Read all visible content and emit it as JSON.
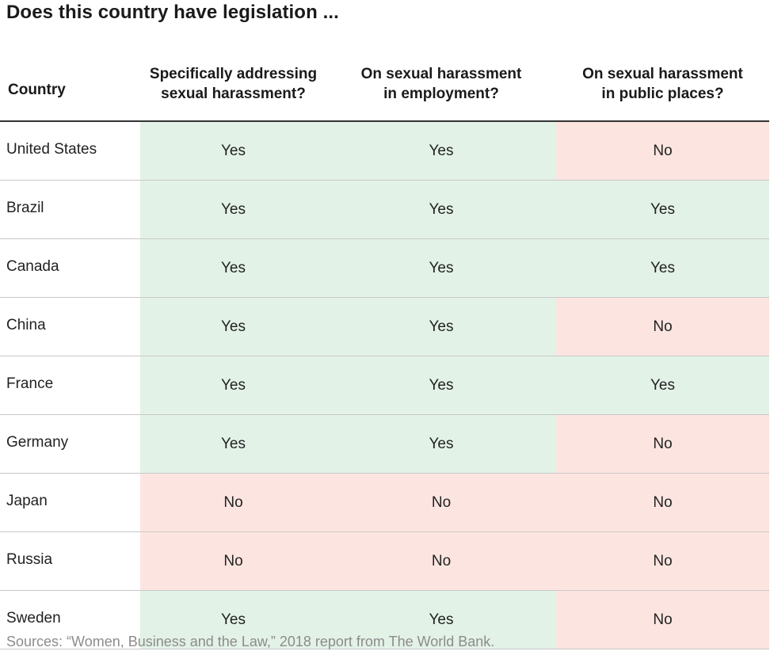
{
  "title": "Does this country have legislation ...",
  "colors": {
    "yes_bg": "#e3f2e7",
    "no_bg": "#fce5e0"
  },
  "table": {
    "columns": [
      "Country",
      "Specifically addressing sexual harassment?",
      "On sexual harassment in employment?",
      "On sexual harassment in public places?"
    ],
    "column_lines": [
      [
        "Country"
      ],
      [
        "Specifically addressing",
        "sexual harassment?"
      ],
      [
        "On sexual harassment",
        "in employment?"
      ],
      [
        "On sexual harassment",
        "in public places?"
      ]
    ],
    "rows": [
      [
        "United States",
        "Yes",
        "Yes",
        "No"
      ],
      [
        "Brazil",
        "Yes",
        "Yes",
        "Yes"
      ],
      [
        "Canada",
        "Yes",
        "Yes",
        "Yes"
      ],
      [
        "China",
        "Yes",
        "Yes",
        "No"
      ],
      [
        "France",
        "Yes",
        "Yes",
        "Yes"
      ],
      [
        "Germany",
        "Yes",
        "Yes",
        "No"
      ],
      [
        "Japan",
        "No",
        "No",
        "No"
      ],
      [
        "Russia",
        "No",
        "No",
        "No"
      ],
      [
        "Sweden",
        "Yes",
        "Yes",
        "No"
      ]
    ]
  },
  "chart_data": {
    "type": "table",
    "title": "Does this country have legislation ...",
    "columns": [
      "Country",
      "Specifically addressing sexual harassment?",
      "On sexual harassment in employment?",
      "On sexual harassment in public places?"
    ],
    "rows": [
      [
        "United States",
        "Yes",
        "Yes",
        "No"
      ],
      [
        "Brazil",
        "Yes",
        "Yes",
        "Yes"
      ],
      [
        "Canada",
        "Yes",
        "Yes",
        "Yes"
      ],
      [
        "China",
        "Yes",
        "Yes",
        "No"
      ],
      [
        "France",
        "Yes",
        "Yes",
        "Yes"
      ],
      [
        "Germany",
        "Yes",
        "Yes",
        "No"
      ],
      [
        "Japan",
        "No",
        "No",
        "No"
      ],
      [
        "Russia",
        "No",
        "No",
        "No"
      ],
      [
        "Sweden",
        "Yes",
        "Yes",
        "No"
      ]
    ]
  },
  "source": "Sources: “Women, Business and the Law,” 2018 report from The World Bank."
}
